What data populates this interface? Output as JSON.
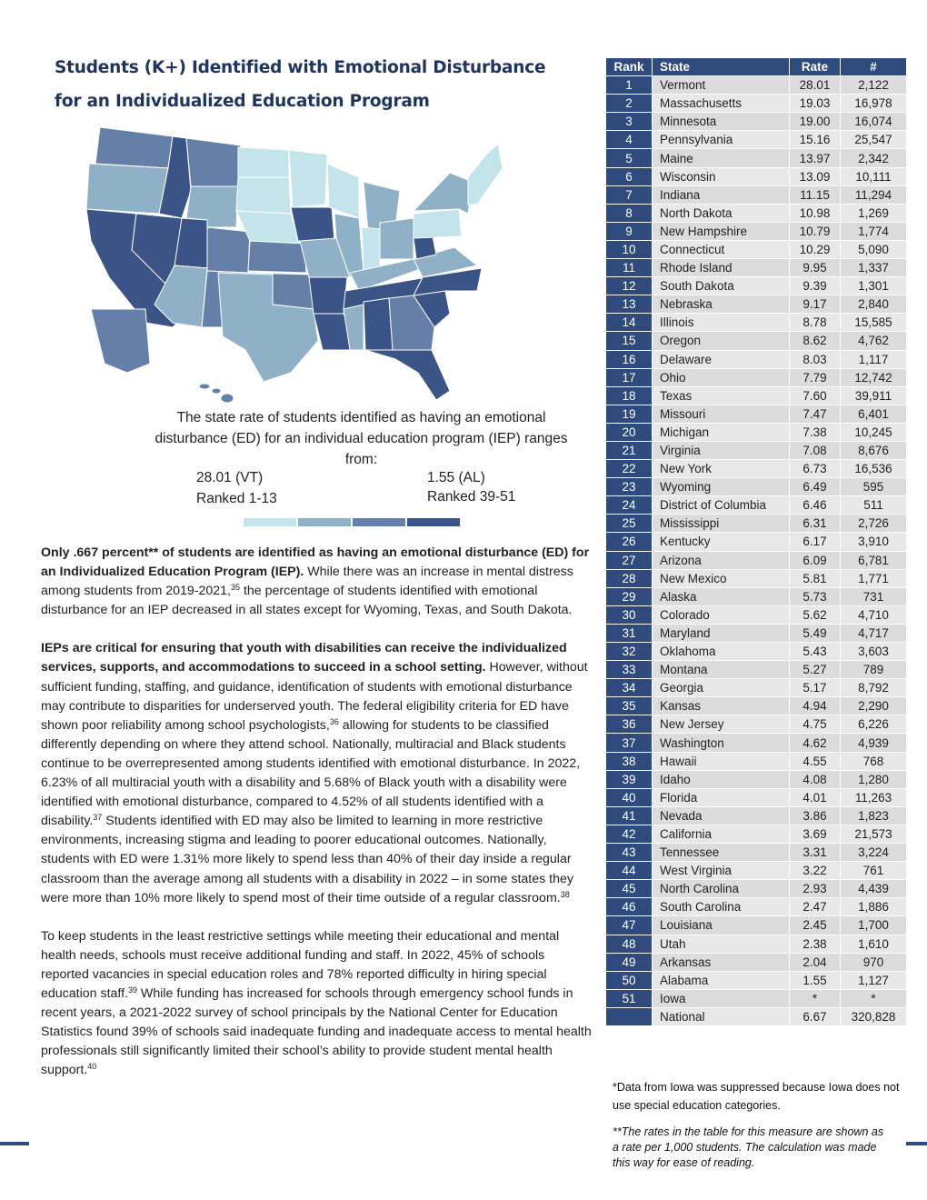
{
  "header": {
    "title_lines": [
      "Students (K+) Identified with Emotional Disturbance",
      "for an Individualized Education Program"
    ]
  },
  "map_legend": {
    "description": "The state rate of students identified as having an emotional disturbance (ED) for an individual education program (IEP) ranges from:",
    "high": "28.01 (VT)",
    "high_rank": "Ranked 1-13",
    "low": "1.55 (AL)",
    "low_rank": "Ranked 39-51"
  },
  "paragraphs": [
    {
      "parts": [
        {
          "bold": "Only .667 percent** of students are identified as having an emotional disturbance (ED) for an Individualized Education Program (IEP)."
        },
        {
          "text": " While there was an increase in mental distress among students from 2019-2021,"
        },
        {
          "sup": "35"
        },
        {
          "text": " the percentage of students identified with emotional disturbance for an IEP decreased in all states except for Wyoming, Texas, and South Dakota."
        }
      ]
    },
    {
      "parts": [
        {
          "bold": "IEPs are critical for ensuring that youth with disabilities can receive the individualized services, supports, and accommodations to succeed in a school setting."
        },
        {
          "text": " However, without sufficient funding, staffing, and guidance, identification of students with emotional disturbance may contribute to disparities for underserved youth. The federal eligibility criteria for ED have shown poor reliability among school psychologists,"
        },
        {
          "sup": "36"
        },
        {
          "text": " allowing for students to be classified differently depending on where they attend school. Nationally, multiracial and Black students continue to be overrepresented among students identified with emotional disturbance. In 2022, 6.23% of all multiracial youth with a disability and 5.68% of Black youth with a disability were identified with emotional disturbance, compared to 4.52% of all students identified with a disability."
        },
        {
          "sup": "37"
        },
        {
          "text": " Students identified with ED may also be limited to learning in more restrictive environments, increasing stigma and leading to poorer educational outcomes. Nationally, students with ED were 1.31% more likely to spend less than 40% of their day inside a regular classroom than the average among all students with a disability in 2022 – in some states they were more than 10% more likely to spend most of their time outside of a regular classroom."
        },
        {
          "sup": "38"
        }
      ]
    },
    {
      "parts": [
        {
          "text": "To keep students in the least restrictive settings while meeting their educational and mental health needs, schools must receive additional funding and staff. In 2022, 45% of schools reported vacancies in special education roles and 78% reported difficulty in hiring special education staff."
        },
        {
          "sup": "39"
        },
        {
          "text": " While funding has increased for schools through emergency school funds in recent years, a 2021-2022 survey of school principals by the National Center for Education Statistics found 39% of schools said inadequate funding and inadequate access to mental health professionals still significantly limited their school’s ability to provide student mental health support."
        },
        {
          "sup": "40"
        }
      ]
    }
  ],
  "table": {
    "header": [
      "Rank",
      "State",
      "Rate",
      "#"
    ],
    "rows": [
      [
        "1",
        "Vermont",
        "28.01",
        "2,122"
      ],
      [
        "2",
        "Massachusetts",
        "19.03",
        "16,978"
      ],
      [
        "3",
        "Minnesota",
        "19.00",
        "16,074"
      ],
      [
        "4",
        "Pennsylvania",
        "15.16",
        "25,547"
      ],
      [
        "5",
        "Maine",
        "13.97",
        "2,342"
      ],
      [
        "6",
        "Wisconsin",
        "13.09",
        "10,111"
      ],
      [
        "7",
        "Indiana",
        "11.15",
        "11,294"
      ],
      [
        "8",
        "North Dakota",
        "10.98",
        "1,269"
      ],
      [
        "9",
        "New Hampshire",
        "10.79",
        "1,774"
      ],
      [
        "10",
        "Connecticut",
        "10.29",
        "5,090"
      ],
      [
        "11",
        "Rhode Island",
        "9.95",
        "1,337"
      ],
      [
        "12",
        "South Dakota",
        "9.39",
        "1,301"
      ],
      [
        "13",
        "Nebraska",
        "9.17",
        "2,840"
      ],
      [
        "14",
        "Illinois",
        "8.78",
        "15,585"
      ],
      [
        "15",
        "Oregon",
        "8.62",
        "4,762"
      ],
      [
        "16",
        "Delaware",
        "8.03",
        "1,117"
      ],
      [
        "17",
        "Ohio",
        "7.79",
        "12,742"
      ],
      [
        "18",
        "Texas",
        "7.60",
        "39,911"
      ],
      [
        "19",
        "Missouri",
        "7.47",
        "6,401"
      ],
      [
        "20",
        "Michigan",
        "7.38",
        "10,245"
      ],
      [
        "21",
        "Virginia",
        "7.08",
        "8,676"
      ],
      [
        "22",
        "New York",
        "6.73",
        "16,536"
      ],
      [
        "23",
        "Wyoming",
        "6.49",
        "595"
      ],
      [
        "24",
        "District of Columbia",
        "6.46",
        "511"
      ],
      [
        "25",
        "Mississippi",
        "6.31",
        "2,726"
      ],
      [
        "26",
        "Kentucky",
        "6.17",
        "3,910"
      ],
      [
        "27",
        "Arizona",
        "6.09",
        "6,781"
      ],
      [
        "28",
        "New Mexico",
        "5.81",
        "1,771"
      ],
      [
        "29",
        "Alaska",
        "5.73",
        "731"
      ],
      [
        "30",
        "Colorado",
        "5.62",
        "4,710"
      ],
      [
        "31",
        "Maryland",
        "5.49",
        "4,717"
      ],
      [
        "32",
        "Oklahoma",
        "5.43",
        "3,603"
      ],
      [
        "33",
        "Montana",
        "5.27",
        "789"
      ],
      [
        "34",
        "Georgia",
        "5.17",
        "8,792"
      ],
      [
        "35",
        "Kansas",
        "4.94",
        "2,290"
      ],
      [
        "36",
        "New Jersey",
        "4.75",
        "6,226"
      ],
      [
        "37",
        "Washington",
        "4.62",
        "4,939"
      ],
      [
        "38",
        "Hawaii",
        "4.55",
        "768"
      ],
      [
        "39",
        "Idaho",
        "4.08",
        "1,280"
      ],
      [
        "40",
        "Florida",
        "4.01",
        "11,263"
      ],
      [
        "41",
        "Nevada",
        "3.86",
        "1,823"
      ],
      [
        "42",
        "California",
        "3.69",
        "21,573"
      ],
      [
        "43",
        "Tennessee",
        "3.31",
        "3,224"
      ],
      [
        "44",
        "West Virginia",
        "3.22",
        "761"
      ],
      [
        "45",
        "North Carolina",
        "2.93",
        "4,439"
      ],
      [
        "46",
        "South Carolina",
        "2.47",
        "1,886"
      ],
      [
        "47",
        "Louisiana",
        "2.45",
        "1,700"
      ],
      [
        "48",
        "Utah",
        "2.38",
        "1,610"
      ],
      [
        "49",
        "Arkansas",
        "2.04",
        "970"
      ],
      [
        "50",
        "Alabama",
        "1.55",
        "1,127"
      ],
      [
        "51",
        "Iowa",
        "*",
        "*"
      ]
    ],
    "national": [
      "National",
      "6.67",
      "320,828"
    ]
  },
  "footnotes": [
    "*Data from Iowa was suppressed because Iowa does not use special education categories.",
    "**The rates in the table for this measure are shown as a rate per 1,000 students. The calculation was made this way for ease of reading."
  ]
}
